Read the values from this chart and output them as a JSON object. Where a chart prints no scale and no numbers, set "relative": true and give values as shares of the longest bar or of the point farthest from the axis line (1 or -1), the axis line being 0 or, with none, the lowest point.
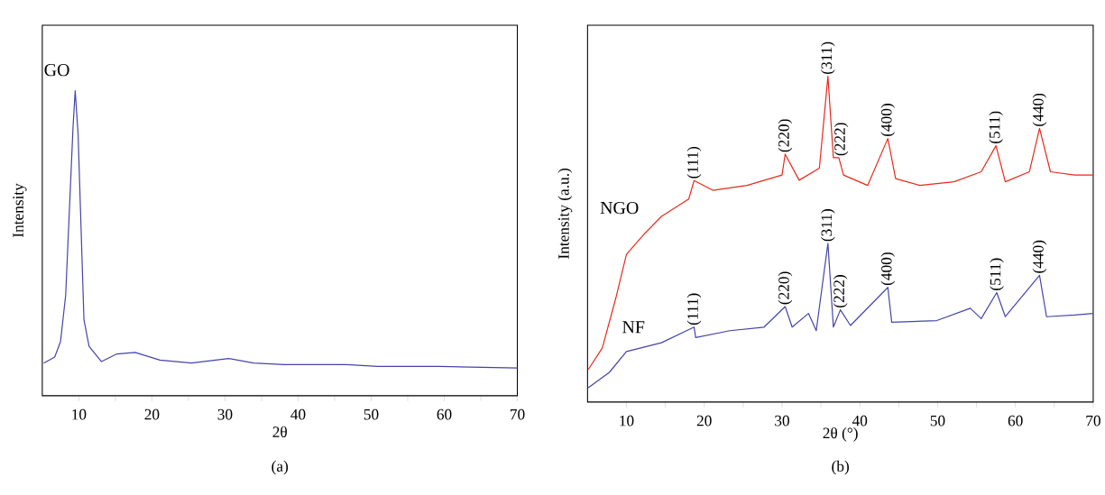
{
  "chart_data": [
    {
      "type": "line",
      "title": "(a)",
      "xlabel": "2θ",
      "ylabel": "Intensity",
      "relative": true,
      "xlim": [
        5,
        70
      ],
      "xticks": [
        10,
        {
          "value": 15,
          "label": null
        },
        20,
        {
          "value": 25,
          "label": null
        },
        30,
        {
          "value": 35,
          "label": null
        },
        40,
        {
          "value": 45,
          "label": null
        },
        50,
        {
          "value": 55,
          "label": null
        },
        60,
        {
          "value": 65,
          "label": null
        },
        70
      ],
      "series": [
        {
          "name": "GO",
          "color": "#4444aa",
          "x": [
            5.2,
            6.7,
            7.5,
            8.2,
            8.7,
            9.2,
            9.5,
            9.9,
            10.3,
            10.7,
            11.4,
            13.1,
            15.2,
            17.7,
            21.1,
            25.4,
            30.5,
            33.9,
            38.1,
            46.6,
            50.9,
            59.4,
            70
          ],
          "values": [
            0.107,
            0.127,
            0.178,
            0.33,
            0.604,
            0.878,
            1.0,
            0.858,
            0.553,
            0.249,
            0.162,
            0.112,
            0.137,
            0.142,
            0.117,
            0.107,
            0.122,
            0.107,
            0.102,
            0.102,
            0.096,
            0.096,
            0.091
          ]
        }
      ]
    },
    {
      "type": "line",
      "title": "(b)",
      "xlabel": "2θ (°)",
      "ylabel": "Intensity (a.u.)",
      "relative": true,
      "xlim": [
        5,
        70
      ],
      "xticks": [
        10,
        {
          "value": 15,
          "label": null
        },
        20,
        {
          "value": 25,
          "label": null
        },
        30,
        {
          "value": 35,
          "label": null
        },
        40,
        {
          "value": 45,
          "label": null
        },
        50,
        {
          "value": 55,
          "label": null
        },
        60,
        {
          "value": 65,
          "label": null
        },
        70
      ],
      "series": [
        {
          "name": "NGO",
          "color": "#e8291c",
          "x": [
            5.1,
            6.9,
            8.7,
            10.0,
            12.3,
            14.5,
            18.0,
            18.7,
            21.1,
            25.5,
            30.0,
            30.4,
            32.2,
            34.8,
            35.9,
            36.6,
            37.3,
            37.9,
            41.0,
            43.6,
            44.6,
            47.7,
            52.1,
            55.6,
            57.5,
            58.7,
            61.8,
            63.1,
            64.5,
            67.6,
            70
          ],
          "values": [
            0.1,
            0.166,
            0.325,
            0.453,
            0.516,
            0.57,
            0.623,
            0.68,
            0.65,
            0.665,
            0.697,
            0.761,
            0.681,
            0.718,
            1.0,
            0.75,
            0.75,
            0.697,
            0.665,
            0.809,
            0.686,
            0.665,
            0.676,
            0.707,
            0.787,
            0.676,
            0.707,
            0.84,
            0.707,
            0.697,
            0.697
          ]
        },
        {
          "name": "NF",
          "color": "#4444aa",
          "x": [
            5.1,
            7.8,
            10.0,
            14.5,
            18.7,
            18.9,
            23.3,
            27.7,
            30.4,
            31.3,
            33.4,
            34.4,
            35.9,
            36.6,
            37.5,
            38.8,
            43.6,
            44.1,
            49.9,
            54.2,
            55.6,
            57.6,
            58.7,
            63.1,
            64.0,
            67.6,
            70
          ],
          "values": [
            0.044,
            0.091,
            0.155,
            0.182,
            0.23,
            0.198,
            0.219,
            0.23,
            0.293,
            0.23,
            0.272,
            0.219,
            0.487,
            0.23,
            0.283,
            0.235,
            0.352,
            0.245,
            0.25,
            0.288,
            0.256,
            0.336,
            0.262,
            0.389,
            0.262,
            0.267,
            0.272
          ]
        }
      ],
      "annotations": [
        {
          "text": "(111)",
          "x": 18.7,
          "y": 0.68
        },
        {
          "text": "(220)",
          "x": 30.4,
          "y": 0.761
        },
        {
          "text": "(311)",
          "x": 35.9,
          "y": 1.0
        },
        {
          "text": "(222)",
          "x": 37.6,
          "y": 0.75
        },
        {
          "text": "(400)",
          "x": 43.6,
          "y": 0.809
        },
        {
          "text": "(511)",
          "x": 57.5,
          "y": 0.787
        },
        {
          "text": "(440)",
          "x": 63.1,
          "y": 0.84
        },
        {
          "text": "(111)",
          "x": 18.7,
          "y": 0.23
        },
        {
          "text": "(220)",
          "x": 30.4,
          "y": 0.293
        },
        {
          "text": "(311)",
          "x": 35.9,
          "y": 0.487
        },
        {
          "text": "(222)",
          "x": 37.5,
          "y": 0.283
        },
        {
          "text": "(400)",
          "x": 43.6,
          "y": 0.352
        },
        {
          "text": "(511)",
          "x": 57.6,
          "y": 0.336
        },
        {
          "text": "(440)",
          "x": 63.1,
          "y": 0.389
        }
      ]
    }
  ]
}
